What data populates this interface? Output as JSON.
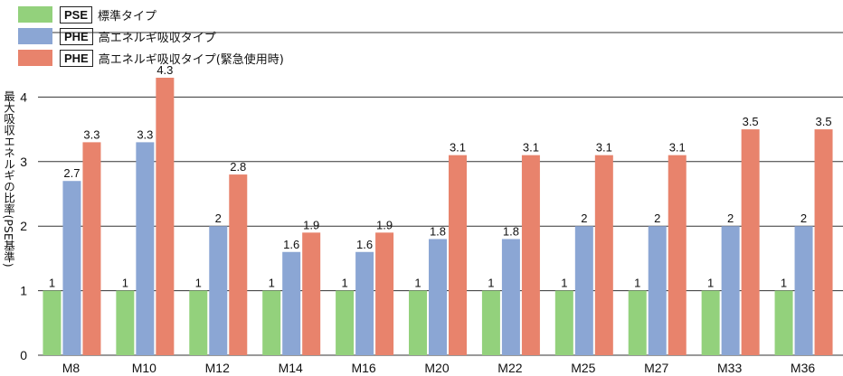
{
  "legend": [
    {
      "code": "PSE",
      "label": "標準タイプ",
      "color": "#93d17c"
    },
    {
      "code": "PHE",
      "label": "高エネルギ吸収タイプ",
      "color": "#8ba6d4"
    },
    {
      "code": "PHE",
      "label": "高エネルギ吸収タイプ(緊急使用時)",
      "color": "#e8836c"
    }
  ],
  "chart_data": {
    "type": "bar",
    "ylabel": "最大吸収エネルギの比率(PSE基準)",
    "xlabel": "",
    "ylim": [
      0,
      5
    ],
    "yticks": [
      0,
      1,
      2,
      3,
      4,
      5
    ],
    "grid": true,
    "categories": [
      "M8",
      "M10",
      "M12",
      "M14",
      "M16",
      "M20",
      "M22",
      "M25",
      "M27",
      "M33",
      "M36"
    ],
    "series": [
      {
        "name": "PSE 標準タイプ",
        "color": "#93d17c",
        "values": [
          1,
          1,
          1,
          1,
          1,
          1,
          1,
          1,
          1,
          1,
          1
        ],
        "labels": [
          "1",
          "1",
          "1",
          "1",
          "1",
          "1",
          "1",
          "1",
          "1",
          "1",
          "1"
        ]
      },
      {
        "name": "PHE 高エネルギ吸収タイプ",
        "color": "#8ba6d4",
        "values": [
          2.7,
          3.3,
          2,
          1.6,
          1.6,
          1.8,
          1.8,
          2,
          2,
          2,
          2
        ],
        "labels": [
          "2.7",
          "3.3",
          "2",
          "1.6",
          "1.6",
          "1.8",
          "1.8",
          "2",
          "2",
          "2",
          "2"
        ]
      },
      {
        "name": "PHE 高エネルギ吸収タイプ(緊急使用時)",
        "color": "#e8836c",
        "values": [
          3.3,
          4.3,
          2.8,
          1.9,
          1.9,
          3.1,
          3.1,
          3.1,
          3.1,
          3.5,
          3.5
        ],
        "labels": [
          "3.3",
          "4.3",
          "2.8",
          "1.9",
          "1.9",
          "3.1",
          "3.1",
          "3.1",
          "3.1",
          "3.5",
          "3.5"
        ]
      }
    ]
  }
}
